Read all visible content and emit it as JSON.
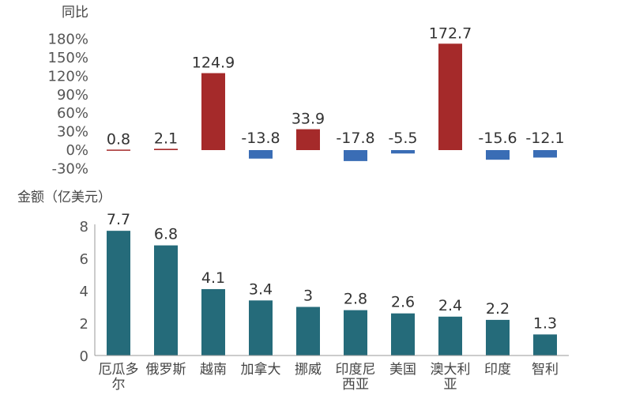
{
  "chart_data": [
    {
      "type": "bar",
      "ylabel": "同比",
      "yticks": [
        "180%",
        "150%",
        "120%",
        "90%",
        "60%",
        "30%",
        "0%",
        "-30%"
      ],
      "ylim": [
        -30,
        180
      ],
      "grid": false,
      "categories": [
        "厄瓜多尔",
        "俄罗斯",
        "越南",
        "加拿大",
        "挪威",
        "印度尼西亚",
        "美国",
        "澳大利亚",
        "印度",
        "智利"
      ],
      "values": [
        0.8,
        2.1,
        124.9,
        -13.8,
        33.9,
        -17.8,
        -5.5,
        172.7,
        -15.6,
        -12.1
      ],
      "value_labels": [
        "0.8",
        "2.1",
        "124.9",
        "-13.8",
        "33.9",
        "-17.8",
        "-5.5",
        "172.7",
        "-15.6",
        "-12.1"
      ],
      "colors": {
        "positive": "#a52a2a",
        "negative": "#3a6db5"
      }
    },
    {
      "type": "bar",
      "ylabel": "金额（亿美元）",
      "yticks": [
        "8",
        "6",
        "4",
        "2",
        "0"
      ],
      "ylim": [
        0,
        8
      ],
      "grid": false,
      "categories": [
        "厄瓜多尔",
        "俄罗斯",
        "越南",
        "加拿大",
        "挪威",
        "印度尼西亚",
        "美国",
        "澳大利亚",
        "印度",
        "智利"
      ],
      "category_lines": [
        [
          "厄瓜多",
          "尔"
        ],
        [
          "俄罗斯"
        ],
        [
          "越南"
        ],
        [
          "加拿大"
        ],
        [
          "挪威"
        ],
        [
          "印度尼",
          "西亚"
        ],
        [
          "美国"
        ],
        [
          "澳大利",
          "亚"
        ],
        [
          "印度"
        ],
        [
          "智利"
        ]
      ],
      "values": [
        7.7,
        6.8,
        4.1,
        3.4,
        3,
        2.8,
        2.6,
        2.4,
        2.2,
        1.3
      ],
      "value_labels": [
        "7.7",
        "6.8",
        "4.1",
        "3.4",
        "3",
        "2.8",
        "2.6",
        "2.4",
        "2.2",
        "1.3"
      ],
      "colors": {
        "bar": "#256b7a",
        "axis": "#999999"
      }
    }
  ]
}
